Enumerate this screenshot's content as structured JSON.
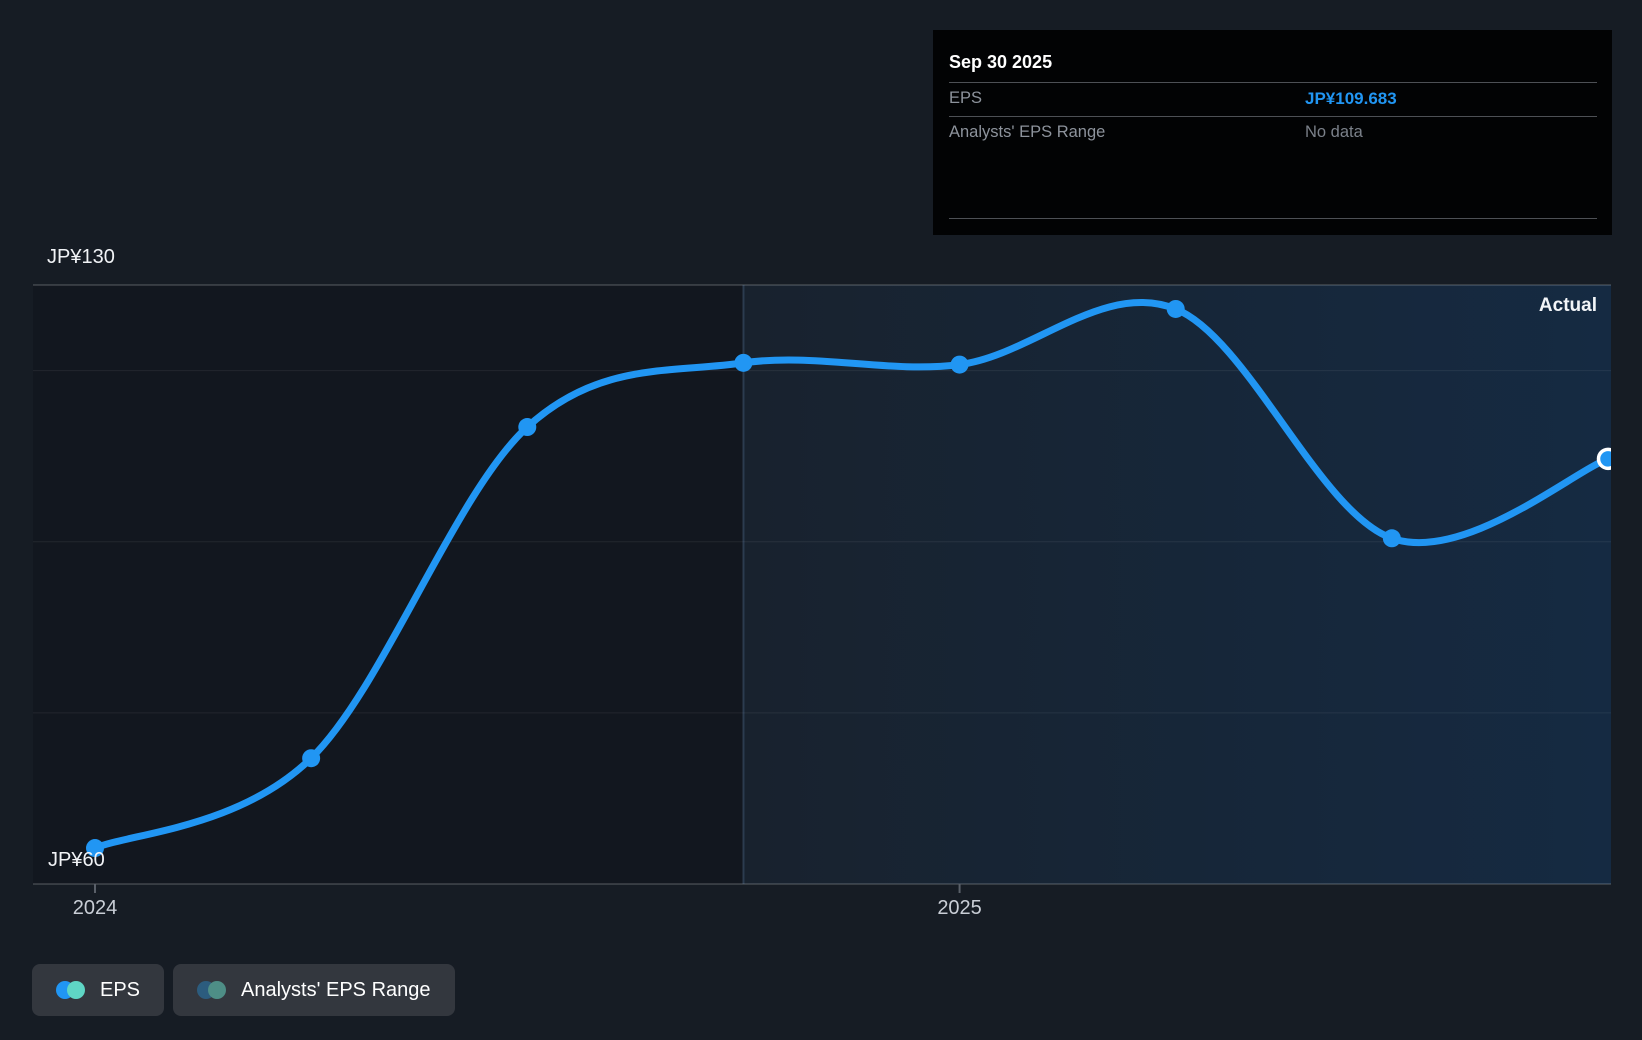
{
  "tooltip": {
    "title": "Sep 30 2025",
    "rows": [
      {
        "label": "EPS",
        "value": "JP¥109.683"
      },
      {
        "label": "Analysts' EPS Range",
        "value": "No data"
      }
    ]
  },
  "chart_data": {
    "type": "line",
    "series": [
      {
        "name": "EPS",
        "color": "#2196f3",
        "x": [
          "Dec 31 2023",
          "Mar 31 2024",
          "Jun 30 2024",
          "Sep 30 2024",
          "Dec 31 2024",
          "Mar 31 2025",
          "Jun 30 2025",
          "Sep 30 2025"
        ],
        "values": [
          64.2,
          74.7,
          113.4,
          120.9,
          120.7,
          127.2,
          100.4,
          109.683
        ]
      }
    ],
    "active_point": {
      "series": "EPS",
      "index": 7,
      "date": "Sep 30 2025",
      "value": 109.683
    },
    "ylim": [
      60,
      130
    ],
    "y_axis": {
      "top_label": "JP¥130",
      "bottom_label": "JP¥60",
      "gridline_values": [
        130,
        120,
        100,
        80,
        60
      ]
    },
    "x_axis": {
      "tick_labels": [
        "2024",
        "2025"
      ],
      "tick_indices": [
        0,
        4
      ]
    },
    "annotations": [
      {
        "text": "Actual",
        "position": "top-right"
      }
    ],
    "divider_index": 3,
    "grid": true,
    "legend_position": "bottom-left"
  },
  "legend": {
    "items": [
      {
        "label": "EPS",
        "swatch_colors": [
          "#2196f3",
          "#5fd6c5"
        ],
        "active": true
      },
      {
        "label": "Analysts' EPS Range",
        "swatch_colors": [
          "#2c5c7e",
          "#4e8e86"
        ],
        "active": false
      }
    ]
  },
  "colors": {
    "background": "#161c24",
    "accent_blue": "#2196f3",
    "teal": "#5fd6c5",
    "tooltip_background": "#020304",
    "value_highlight": "#2196f3",
    "muted_text": "#8d939c"
  }
}
